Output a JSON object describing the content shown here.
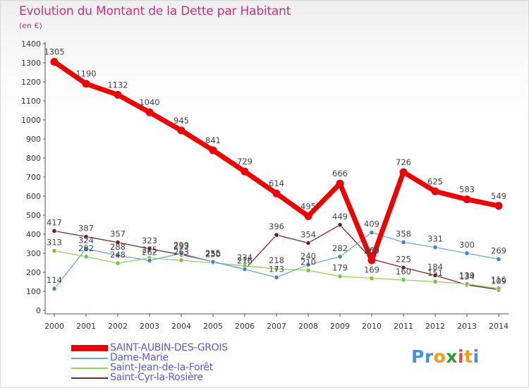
{
  "chart_data": {
    "type": "line",
    "title": "Evolution du Montant de la Dette par Habitant",
    "unit": "(en €)",
    "x": [
      "2000",
      "2001",
      "2002",
      "2003",
      "2004",
      "2005",
      "2006",
      "2007",
      "2008",
      "2009",
      "2010",
      "2011",
      "2012",
      "2013",
      "2014"
    ],
    "ylim": [
      0,
      1400
    ],
    "yticks": [
      0,
      100,
      200,
      300,
      400,
      500,
      600,
      700,
      800,
      900,
      1000,
      1100,
      1200,
      1300,
      1400
    ],
    "grid": false,
    "legend_position": "bottom-left",
    "series": [
      {
        "name": "SAINT-AUBIN-DES-GROIS",
        "color": "#ee0000",
        "marker_fill": "#ee0000",
        "values": [
          1305,
          1190,
          1132,
          1040,
          945,
          841,
          729,
          614,
          495,
          666,
          263,
          726,
          625,
          583,
          549
        ]
      },
      {
        "name": "Dame-Marie",
        "color": "#6fa8dc",
        "marker_fill": "#3d85c6",
        "values": [
          114,
          324,
          288,
          262,
          299,
          255,
          216,
          173,
          240,
          282,
          409,
          358,
          331,
          300,
          269
        ]
      },
      {
        "name": "Saint-Jean-de-la-Forêt",
        "color": "#93d35a",
        "marker_fill": "#7cc242",
        "values": [
          313,
          282,
          248,
          275,
          263,
          250,
          234,
          218,
          210,
          179,
          169,
          160,
          151,
          139,
          116
        ]
      },
      {
        "name": "Saint-Cyr-la-Rosière",
        "color": "#7a2a2a",
        "marker_fill": "#6b1f1f",
        "values": [
          417,
          387,
          357,
          323,
          293,
          256,
          216,
          396,
          354,
          449,
          269,
          225,
          184,
          134,
          109
        ]
      }
    ]
  },
  "logo": {
    "letters": [
      "P",
      "r",
      "o",
      "x",
      "i",
      "t",
      "i"
    ],
    "colors": [
      "#4a90d9",
      "#4a90d9",
      "#f39c12",
      "#2d9b2d",
      "#e74c3c",
      "#f39c12",
      "#4a90d9"
    ]
  }
}
